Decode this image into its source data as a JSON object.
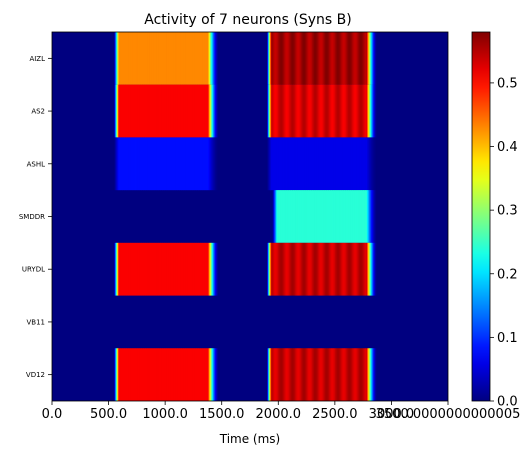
{
  "chart_data": {
    "type": "heatmap",
    "title": "Activity of 7 neurons (Syns B)",
    "xlabel": "Time (ms)",
    "ylabel": "",
    "rows": [
      "AIZL",
      "AS2",
      "ASHL",
      "SMDDR",
      "URYDL",
      "VB11",
      "VD12"
    ],
    "x_range": [
      0,
      3500
    ],
    "x_ticks": [
      0,
      500,
      1000,
      1500,
      2000,
      2500,
      3000,
      3500
    ],
    "x_tick_labels": [
      "0.0",
      "500.0",
      "1000.0",
      "1500.0",
      "2000.0",
      "2500.0",
      "3000.0",
      "3500.0000000000005"
    ],
    "colorbar": {
      "colormap": "jet",
      "range": [
        0,
        0.58
      ],
      "ticks": [
        0.0,
        0.1,
        0.2,
        0.3,
        0.4,
        0.5
      ],
      "tick_labels": [
        "0.0",
        "0.1",
        "0.2",
        "0.3",
        "0.4",
        "0.5"
      ]
    },
    "series": [
      {
        "name": "AIZL",
        "pulses": [
          {
            "start": 550,
            "end": 1380,
            "level": 0.43,
            "oscillating": false
          },
          {
            "start": 1900,
            "end": 2780,
            "level": 0.56,
            "oscillating": true
          }
        ]
      },
      {
        "name": "AS2",
        "pulses": [
          {
            "start": 550,
            "end": 1380,
            "level": 0.51,
            "oscillating": false
          },
          {
            "start": 1900,
            "end": 2780,
            "level": 0.53,
            "oscillating": true
          }
        ]
      },
      {
        "name": "ASHL",
        "pulses": [
          {
            "start": 550,
            "end": 1380,
            "level": 0.08,
            "oscillating": false
          },
          {
            "start": 1900,
            "end": 2780,
            "level": 0.06,
            "oscillating": false
          }
        ]
      },
      {
        "name": "SMDDR",
        "pulses": [
          {
            "start": 1950,
            "end": 2780,
            "level": 0.24,
            "oscillating": false
          }
        ]
      },
      {
        "name": "URYDL",
        "pulses": [
          {
            "start": 550,
            "end": 1380,
            "level": 0.51,
            "oscillating": false
          },
          {
            "start": 1900,
            "end": 2780,
            "level": 0.54,
            "oscillating": true
          }
        ]
      },
      {
        "name": "VB11",
        "pulses": []
      },
      {
        "name": "VD12",
        "pulses": [
          {
            "start": 550,
            "end": 1380,
            "level": 0.51,
            "oscillating": false
          },
          {
            "start": 1900,
            "end": 2780,
            "level": 0.54,
            "oscillating": true
          }
        ]
      }
    ]
  }
}
